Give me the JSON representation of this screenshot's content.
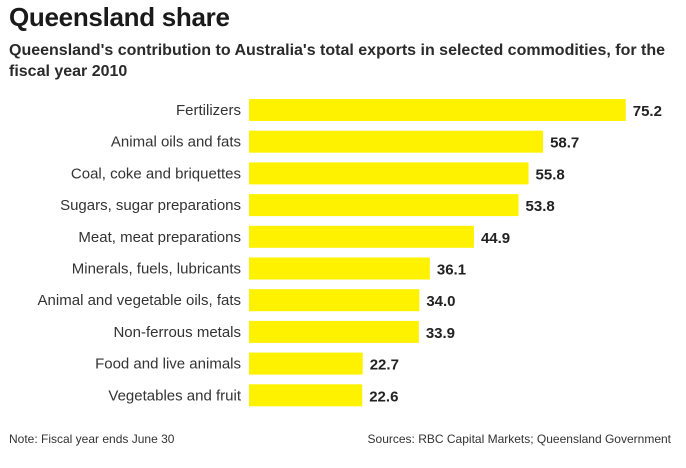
{
  "chart_data": {
    "type": "bar",
    "orientation": "horizontal",
    "title": "Queensland share",
    "subtitle": "Queensland's contribution to Australia's total exports in selected commodities, for the fiscal year 2010",
    "categories": [
      "Fertilizers",
      "Animal oils and fats",
      "Coal, coke and briquettes",
      "Sugars, sugar preparations",
      "Meat, meat preparations",
      "Minerals, fuels, lubricants",
      "Animal and vegetable oils, fats",
      "Non-ferrous metals",
      "Food and live animals",
      "Vegetables and fruit"
    ],
    "values": [
      75.2,
      58.7,
      55.8,
      53.8,
      44.9,
      36.1,
      34.0,
      33.9,
      22.7,
      22.6
    ],
    "value_labels": [
      "75.2",
      "58.7",
      "55.8",
      "53.8",
      "44.9",
      "36.1",
      "34.0",
      "33.9",
      "22.7",
      "22.6"
    ],
    "bar_color": "#FFF200",
    "grid": false,
    "legend": "none"
  },
  "note": "Note: Fiscal year ends June 30",
  "source": "Sources: RBC Capital Markets; Queensland Government"
}
